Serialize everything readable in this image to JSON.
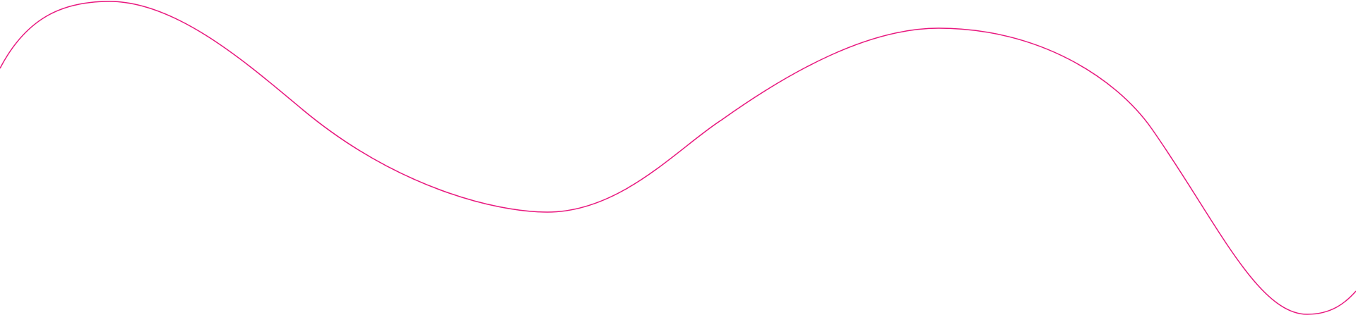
{
  "decoration": {
    "shape": "wavy-line",
    "stroke_color": "#e8177e",
    "background_color": "#ffffff"
  }
}
